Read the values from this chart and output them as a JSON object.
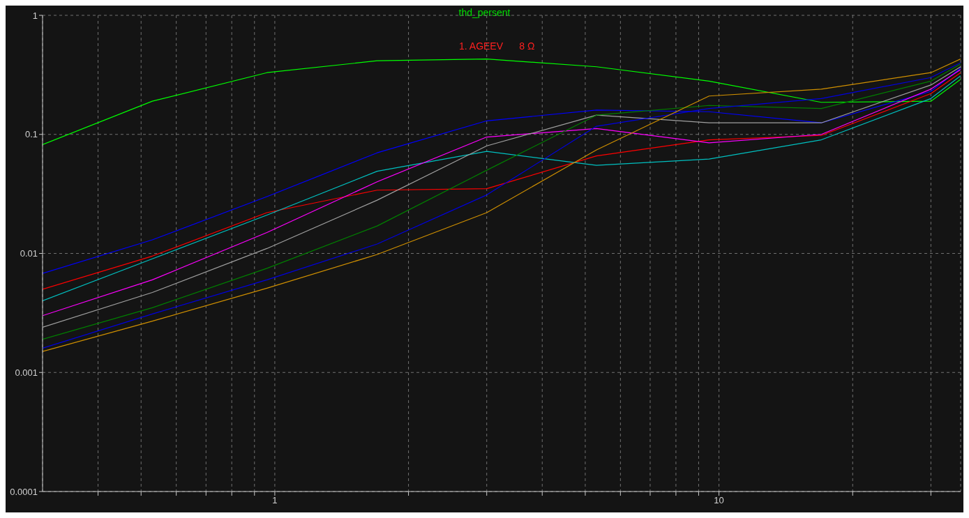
{
  "chart_data": {
    "type": "line",
    "title": "thd_persent",
    "annotations": [
      "1. AGEEV      8 Ω"
    ],
    "x": [
      0.3,
      0.53,
      0.96,
      1.7,
      3.0,
      5.3,
      9.5,
      17,
      30,
      35
    ],
    "series": [
      {
        "color": "#00ff00",
        "values": [
          0.082,
          0.19,
          0.33,
          0.415,
          0.43,
          0.37,
          0.28,
          0.186,
          0.19,
          0.29
        ]
      },
      {
        "color": "#0000ff",
        "values": [
          0.0068,
          0.013,
          0.03,
          0.07,
          0.13,
          0.16,
          0.155,
          0.125,
          0.23,
          0.36
        ]
      },
      {
        "color": "#ff0000",
        "values": [
          0.005,
          0.0095,
          0.022,
          0.034,
          0.035,
          0.066,
          0.09,
          0.098,
          0.22,
          0.33
        ]
      },
      {
        "color": "#00c0c0",
        "values": [
          0.004,
          0.009,
          0.021,
          0.049,
          0.072,
          0.055,
          0.062,
          0.09,
          0.2,
          0.31
        ]
      },
      {
        "color": "#ff00ff",
        "values": [
          0.003,
          0.006,
          0.015,
          0.04,
          0.095,
          0.112,
          0.085,
          0.1,
          0.24,
          0.35
        ]
      },
      {
        "color": "#a0a0a0",
        "values": [
          0.0024,
          0.0047,
          0.011,
          0.028,
          0.08,
          0.145,
          0.125,
          0.125,
          0.26,
          0.37
        ]
      },
      {
        "color": "#008000",
        "values": [
          0.0019,
          0.0035,
          0.0075,
          0.017,
          0.05,
          0.145,
          0.175,
          0.165,
          0.28,
          0.39
        ]
      },
      {
        "color": "#0000e0",
        "values": [
          0.0016,
          0.0031,
          0.006,
          0.012,
          0.031,
          0.117,
          0.165,
          0.2,
          0.3,
          0.4
        ]
      },
      {
        "color": "#d09000",
        "values": [
          0.0015,
          0.0027,
          0.0051,
          0.0098,
          0.022,
          0.074,
          0.21,
          0.24,
          0.33,
          0.43
        ]
      }
    ],
    "log": "xy",
    "xlim": [
      0.3,
      35
    ],
    "xticks": [
      {
        "value": 0.4,
        "label": null
      },
      {
        "value": 0.5,
        "label": null
      },
      {
        "value": 0.6,
        "label": null
      },
      {
        "value": 0.7,
        "label": null
      },
      {
        "value": 0.8,
        "label": null
      },
      {
        "value": 0.9,
        "label": null
      },
      1,
      {
        "value": 2,
        "label": null
      },
      {
        "value": 3,
        "label": null
      },
      {
        "value": 4,
        "label": null
      },
      {
        "value": 5,
        "label": null
      },
      {
        "value": 6,
        "label": null
      },
      {
        "value": 7,
        "label": null
      },
      {
        "value": 8,
        "label": null
      },
      {
        "value": 9,
        "label": null
      },
      10,
      {
        "value": 20,
        "label": null
      },
      {
        "value": 30,
        "label": null
      }
    ],
    "ylim": [
      0.0001,
      1
    ],
    "yticks": [
      0.0001,
      0.001,
      0.01,
      0.1,
      1
    ],
    "grid": true,
    "line_style": "solid",
    "marker": "none"
  }
}
